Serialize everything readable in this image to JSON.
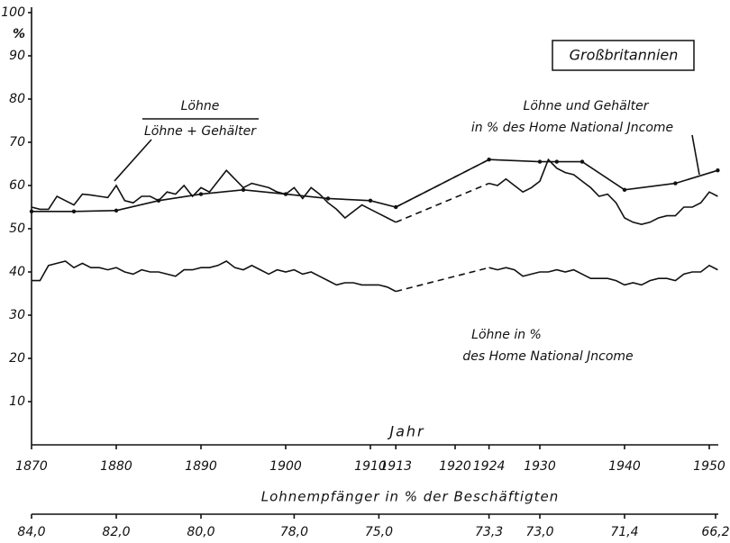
{
  "chart_data": {
    "type": "line",
    "ylabel": "%",
    "xlabel": "Jahr",
    "x2label": "Lohnempfänger in % der Beschäftigten",
    "annotations": [
      "Großbritannien",
      "Löhne",
      "Löhne + Gehälter",
      "Löhne und Gehälter",
      "in % des Home National Jncome",
      "Löhne in %",
      "des Home National Jncome"
    ],
    "xlim": [
      1870,
      1951
    ],
    "ylim": [
      0,
      100
    ],
    "yticks": [
      10,
      20,
      30,
      40,
      50,
      60,
      70,
      80,
      90,
      100
    ],
    "xticks": [
      1870,
      1880,
      1890,
      1900,
      1910,
      1913,
      1920,
      1924,
      1930,
      1940,
      1950
    ],
    "x2ticks": [
      {
        "value": 1870,
        "label": "84,0"
      },
      {
        "value": 1880,
        "label": "82,0"
      },
      {
        "value": 1890,
        "label": "80,0"
      },
      {
        "value": 1901,
        "label": "78,0"
      },
      {
        "value": 1911,
        "label": "75,0"
      },
      {
        "value": 1924,
        "label": "73,3"
      },
      {
        "value": 1930,
        "label": "73,0"
      },
      {
        "value": 1940,
        "label": "71,4"
      },
      {
        "value": 1951,
        "label": "66,2"
      }
    ],
    "color": "#111111",
    "x": [
      1870,
      1871,
      1872,
      1873,
      1874,
      1875,
      1876,
      1877,
      1878,
      1879,
      1880,
      1881,
      1882,
      1883,
      1884,
      1885,
      1886,
      1887,
      1888,
      1889,
      1890,
      1891,
      1892,
      1893,
      1894,
      1895,
      1896,
      1897,
      1898,
      1899,
      1900,
      1901,
      1902,
      1903,
      1904,
      1905,
      1906,
      1907,
      1908,
      1909,
      1910,
      1911,
      1912,
      1913,
      1914,
      1915,
      1916,
      1917,
      1918,
      1919,
      1920,
      1921,
      1922,
      1923,
      1924,
      1925,
      1926,
      1927,
      1928,
      1929,
      1930,
      1931,
      1932,
      1933,
      1934,
      1935,
      1936,
      1937,
      1938,
      1939,
      1940,
      1941,
      1942,
      1943,
      1944,
      1945,
      1946,
      1947,
      1948,
      1949,
      1950,
      1951
    ],
    "series": [
      {
        "values": [
          55,
          54.5,
          54.5,
          57.5,
          56.5,
          55.5,
          58,
          57.8,
          57.5,
          57.2,
          60,
          56.5,
          56,
          57.5,
          57.5,
          56.5,
          58.5,
          58,
          60,
          57.5,
          59.5,
          58.5,
          61,
          63.5,
          61.5,
          59.5,
          60.5,
          60,
          59.5,
          58.5,
          58,
          59.5,
          57,
          59.5,
          58,
          56,
          54.5,
          52.5,
          54,
          55.5,
          54.5,
          53.5,
          52.5,
          51.5,
          null,
          null,
          null,
          null,
          null,
          null,
          null,
          null,
          null,
          null,
          60.5,
          60,
          61.5,
          60,
          58.5,
          59.5,
          61,
          66,
          64,
          63,
          62.5,
          61,
          59.5,
          57.5,
          58,
          56,
          52.5,
          51.5,
          51,
          51.5,
          52.5,
          53,
          53,
          55,
          55,
          56,
          58.5,
          57.5
        ]
      },
      {
        "values": [
          38,
          38,
          41.5,
          42,
          42.5,
          41,
          42,
          41,
          41,
          40.5,
          41,
          40,
          39.5,
          40.5,
          40,
          40,
          39.5,
          39,
          40.5,
          40.5,
          41,
          41,
          41.5,
          42.5,
          41,
          40.5,
          41.5,
          40.5,
          39.5,
          40.5,
          40,
          40.5,
          39.5,
          40,
          39,
          38,
          37,
          37.5,
          37.5,
          37,
          37,
          37,
          36.5,
          35.5,
          null,
          null,
          null,
          null,
          null,
          null,
          null,
          null,
          null,
          null,
          41,
          40.5,
          41,
          40.5,
          39,
          39.5,
          40,
          40,
          40.5,
          40,
          40.5,
          39.5,
          38.5,
          38.5,
          38.5,
          38,
          37,
          37.5,
          37,
          38,
          38.5,
          38.5,
          38,
          39.5,
          40,
          40,
          41.5,
          40.5
        ]
      },
      {
        "x": [
          1870,
          1875,
          1880,
          1885,
          1890,
          1895,
          1900,
          1905,
          1910,
          1913,
          1924,
          1930,
          1932,
          1935,
          1940,
          1946,
          1951
        ],
        "values": [
          54,
          54,
          54.2,
          56.5,
          58,
          59,
          58,
          57,
          56.5,
          55,
          66,
          65.5,
          65.5,
          65.5,
          59,
          60.5,
          63.5
        ],
        "markers": true
      },
      {
        "x": [
          1913,
          1924
        ],
        "values": [
          51.5,
          60.5
        ],
        "dashed": true
      },
      {
        "x": [
          1913,
          1924
        ],
        "values": [
          35.5,
          41
        ],
        "dashed": true
      },
      {
        "x": [
          1913,
          1924
        ],
        "values": [
          55,
          66
        ],
        "dashed": true
      }
    ]
  }
}
